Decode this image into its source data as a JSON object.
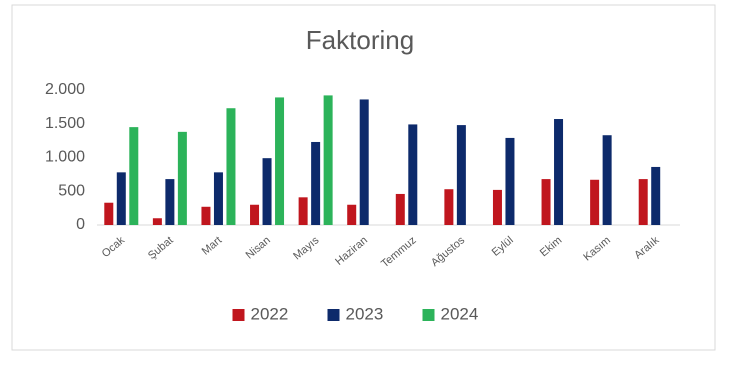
{
  "chart_data": {
    "type": "bar",
    "title": "Faktoring",
    "categories": [
      "Ocak",
      "Şubat",
      "Mart",
      "Nisan",
      "Mayıs",
      "Haziran",
      "Temmuz",
      "Ağustos",
      "Eylül",
      "Ekim",
      "Kasım",
      "Aralık"
    ],
    "series": [
      {
        "name": "2022",
        "color": "#c0161e",
        "values": [
          330,
          100,
          270,
          300,
          410,
          300,
          460,
          530,
          520,
          680,
          670,
          680
        ]
      },
      {
        "name": "2023",
        "color": "#0d2a6b",
        "values": [
          780,
          680,
          780,
          990,
          1230,
          1860,
          1490,
          1480,
          1290,
          1570,
          1330,
          860
        ]
      },
      {
        "name": "2024",
        "color": "#2cb35a",
        "values": [
          1450,
          1380,
          1730,
          1890,
          1920,
          null,
          null,
          null,
          null,
          null,
          null,
          null
        ]
      }
    ],
    "ylim": [
      0,
      2000
    ],
    "yticks": [
      0,
      500,
      {
        "value": 1000,
        "label": "1.000"
      },
      {
        "value": 1500,
        "label": "1.500"
      },
      {
        "value": 2000,
        "label": "2.000"
      }
    ],
    "grid": false,
    "legend": "bottom"
  }
}
